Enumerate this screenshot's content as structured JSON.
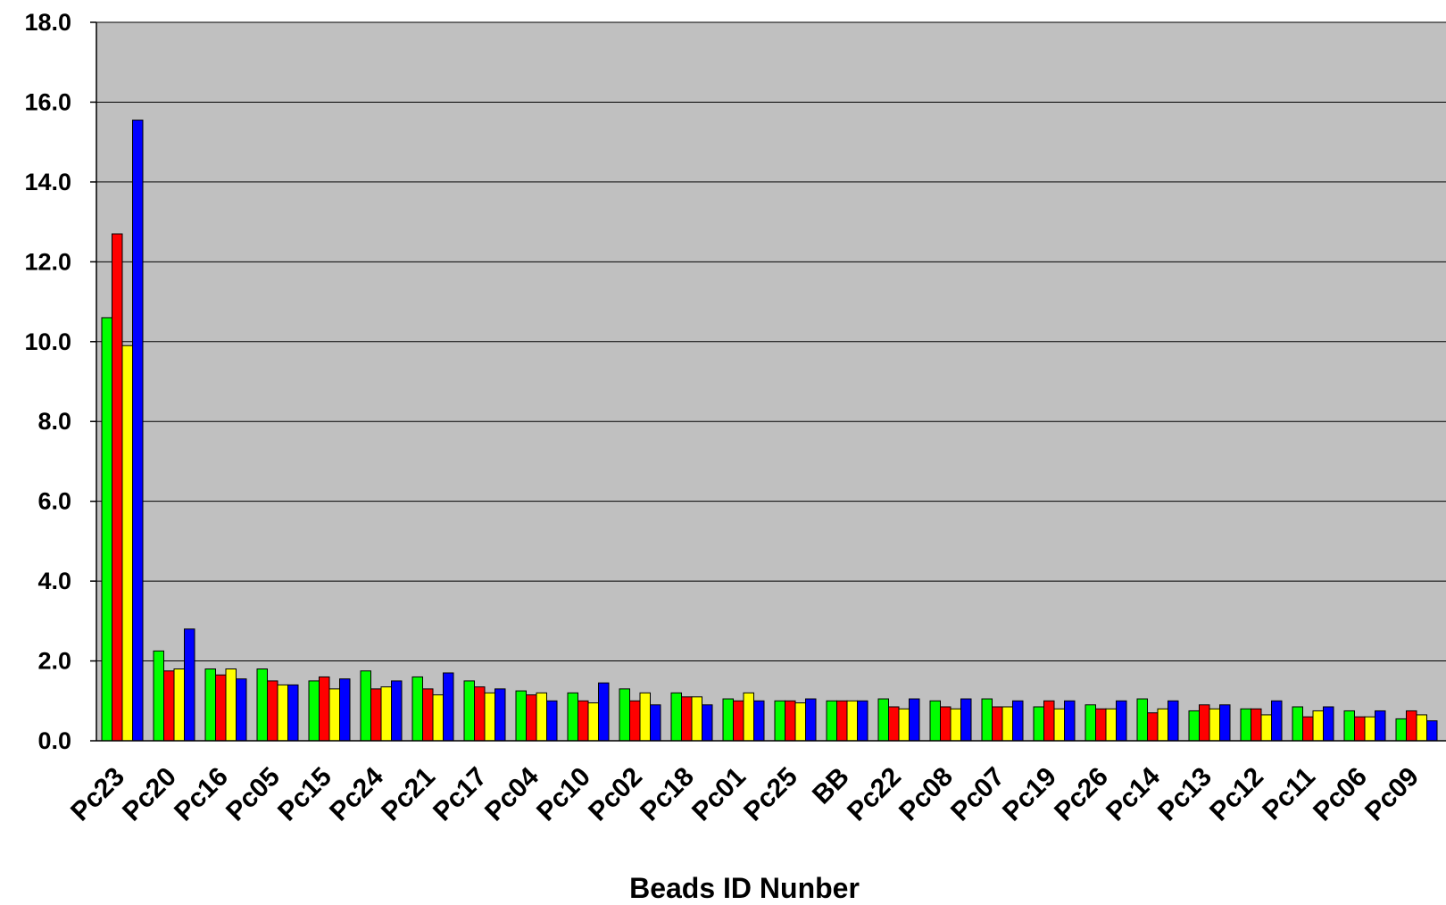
{
  "chart_data": {
    "type": "bar",
    "title": "",
    "xlabel": "Beads ID Nunber",
    "ylabel": "",
    "ylim": [
      0,
      18
    ],
    "yticks": [
      "0.0",
      "2.0",
      "4.0",
      "6.0",
      "8.0",
      "10.0",
      "12.0",
      "14.0",
      "16.0",
      "18.0"
    ],
    "grid": true,
    "legend": "none",
    "background_color": "#c0c0c0",
    "categories": [
      "Pc23",
      "Pc20",
      "Pc16",
      "Pc05",
      "Pc15",
      "Pc24",
      "Pc21",
      "Pc17",
      "Pc04",
      "Pc10",
      "Pc02",
      "Pc18",
      "Pc01",
      "Pc25",
      "BB",
      "Pc22",
      "Pc08",
      "Pc07",
      "Pc19",
      "Pc26",
      "Pc14",
      "Pc13",
      "Pc12",
      "Pc11",
      "Pc06",
      "Pc09"
    ],
    "series": [
      {
        "color": "#00ff00",
        "values": [
          10.6,
          2.25,
          1.8,
          1.8,
          1.5,
          1.75,
          1.6,
          1.5,
          1.25,
          1.2,
          1.3,
          1.2,
          1.05,
          1.0,
          1.0,
          1.05,
          1.0,
          1.05,
          0.85,
          0.9,
          1.05,
          0.75,
          0.8,
          0.85,
          0.75,
          0.55
        ]
      },
      {
        "color": "#ff0000",
        "values": [
          12.7,
          1.75,
          1.65,
          1.5,
          1.6,
          1.3,
          1.3,
          1.35,
          1.15,
          1.0,
          1.0,
          1.1,
          1.0,
          1.0,
          1.0,
          0.85,
          0.85,
          0.85,
          1.0,
          0.8,
          0.7,
          0.9,
          0.8,
          0.6,
          0.6,
          0.75
        ]
      },
      {
        "color": "#ffff00",
        "values": [
          9.9,
          1.8,
          1.8,
          1.4,
          1.3,
          1.35,
          1.15,
          1.2,
          1.2,
          0.95,
          1.2,
          1.1,
          1.2,
          0.95,
          1.0,
          0.8,
          0.8,
          0.85,
          0.8,
          0.8,
          0.8,
          0.8,
          0.65,
          0.75,
          0.6,
          0.65
        ]
      },
      {
        "color": "#0000ff",
        "values": [
          15.55,
          2.8,
          1.55,
          1.4,
          1.55,
          1.5,
          1.7,
          1.3,
          1.0,
          1.45,
          0.9,
          0.9,
          1.0,
          1.05,
          1.0,
          1.05,
          1.05,
          1.0,
          1.0,
          1.0,
          1.0,
          0.9,
          1.0,
          0.85,
          0.75,
          0.5
        ]
      }
    ]
  }
}
